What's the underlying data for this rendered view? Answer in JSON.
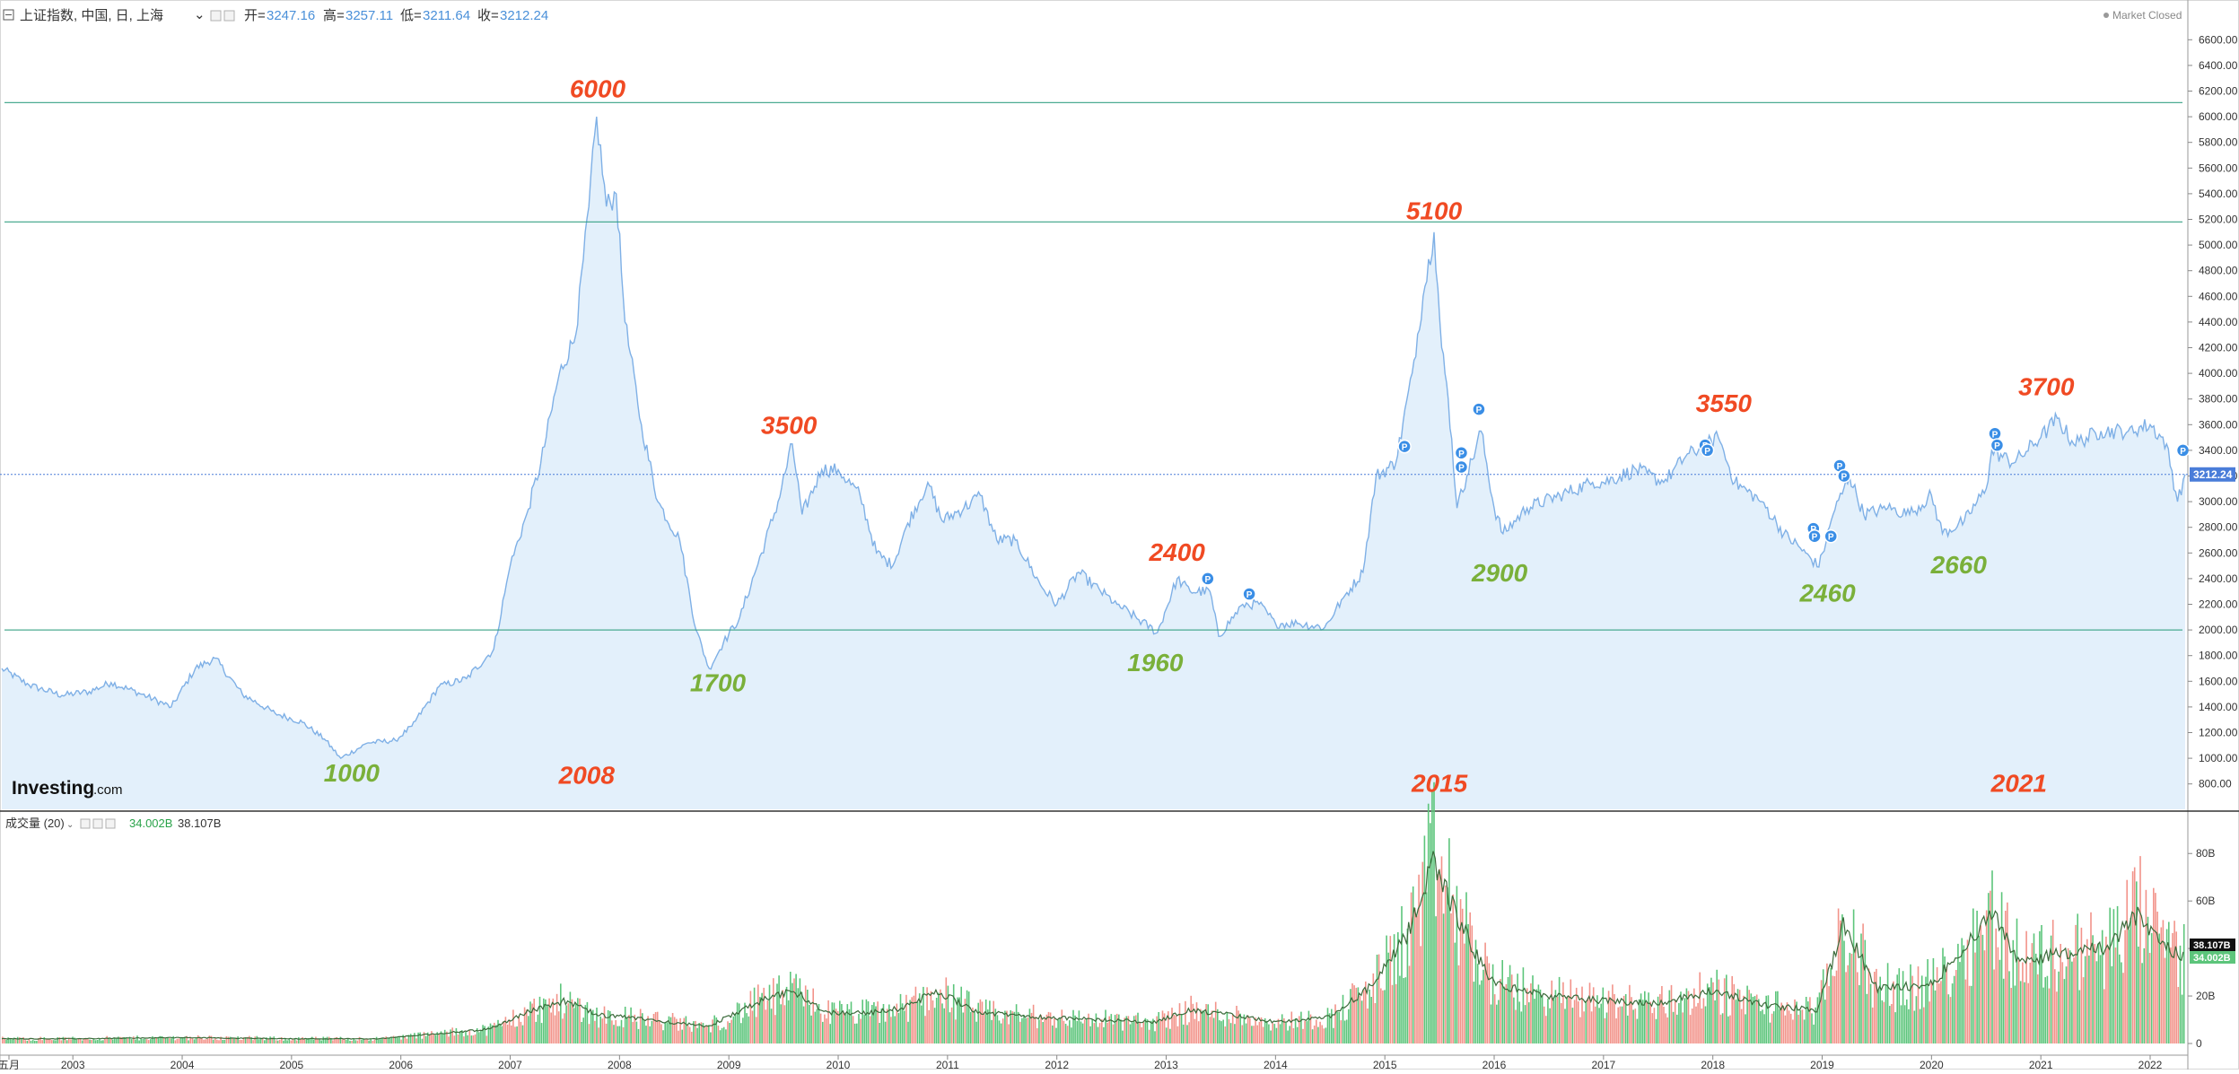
{
  "header": {
    "title": "上证指数, 中国, 日, 上海",
    "open_label": "开=",
    "open": "3247.16",
    "high_label": "高=",
    "high": "3257.11",
    "low_label": "低=",
    "low": "3211.64",
    "close_label": "收=",
    "close": "3212.24",
    "market_status": "Market Closed"
  },
  "volume_header": {
    "label": "成交量 (20)",
    "value1": "34.002B",
    "value2": "38.107B"
  },
  "logo": {
    "main": "Investing",
    "suffix": ".com"
  },
  "colors": {
    "price_line": "#7fb0e6",
    "area_fill": "#e3f0fb",
    "hline": "#2f9e7f",
    "red_annot": "#f04a23",
    "green_annot": "#7ab03a",
    "vol_up": "#5cc57b",
    "vol_down": "#f2938a",
    "vol_ma": "#3b6b3b",
    "price_tag": "#4a7dd9"
  },
  "chart_data": [
    {
      "type": "line",
      "title": "上证指数, 中国, 日, 上海",
      "x_labels": [
        "五月",
        "2003",
        "2004",
        "2005",
        "2006",
        "2007",
        "2008",
        "2009",
        "2010",
        "2011",
        "2012",
        "2013",
        "2014",
        "2015",
        "2016",
        "2017",
        "2018",
        "2019",
        "2020",
        "2021",
        "2022"
      ],
      "y_ticks": [
        "800.00",
        "1000.00",
        "1200.00",
        "1400.00",
        "1600.00",
        "1800.00",
        "2000.00",
        "2200.00",
        "2400.00",
        "2600.00",
        "2800.00",
        "3000.00",
        "3200.00",
        "3400.00",
        "3600.00",
        "3800.00",
        "4000.00",
        "4200.00",
        "4400.00",
        "4600.00",
        "4800.00",
        "5000.00",
        "5200.00",
        "5400.00",
        "5600.00",
        "5800.00",
        "6000.00",
        "6200.00",
        "6400.00",
        "6600.00"
      ],
      "ylim": [
        700,
        6700
      ],
      "series": [
        {
          "points": [
            [
              2002.35,
              1700
            ],
            [
              2002.6,
              1570
            ],
            [
              2002.9,
              1490
            ],
            [
              2003.15,
              1520
            ],
            [
              2003.35,
              1590
            ],
            [
              2003.6,
              1510
            ],
            [
              2003.9,
              1400
            ],
            [
              2004.12,
              1700
            ],
            [
              2004.3,
              1780
            ],
            [
              2004.55,
              1500
            ],
            [
              2004.85,
              1350
            ],
            [
              2005.1,
              1280
            ],
            [
              2005.3,
              1150
            ],
            [
              2005.45,
              1000
            ],
            [
              2005.7,
              1120
            ],
            [
              2005.95,
              1140
            ],
            [
              2006.1,
              1250
            ],
            [
              2006.35,
              1560
            ],
            [
              2006.6,
              1620
            ],
            [
              2006.85,
              1850
            ],
            [
              2007.0,
              2500
            ],
            [
              2007.15,
              2900
            ],
            [
              2007.28,
              3300
            ],
            [
              2007.45,
              4000
            ],
            [
              2007.6,
              4300
            ],
            [
              2007.72,
              5300
            ],
            [
              2007.79,
              6000
            ],
            [
              2007.88,
              5300
            ],
            [
              2007.97,
              5400
            ],
            [
              2008.05,
              4400
            ],
            [
              2008.2,
              3600
            ],
            [
              2008.35,
              3000
            ],
            [
              2008.55,
              2700
            ],
            [
              2008.7,
              2000
            ],
            [
              2008.82,
              1700
            ],
            [
              2008.95,
              1900
            ],
            [
              2009.1,
              2100
            ],
            [
              2009.3,
              2600
            ],
            [
              2009.45,
              3000
            ],
            [
              2009.58,
              3450
            ],
            [
              2009.67,
              2900
            ],
            [
              2009.85,
              3250
            ],
            [
              2010.0,
              3250
            ],
            [
              2010.2,
              3050
            ],
            [
              2010.35,
              2600
            ],
            [
              2010.5,
              2500
            ],
            [
              2010.62,
              2800
            ],
            [
              2010.82,
              3150
            ],
            [
              2010.95,
              2850
            ],
            [
              2011.15,
              2950
            ],
            [
              2011.3,
              3050
            ],
            [
              2011.45,
              2700
            ],
            [
              2011.62,
              2700
            ],
            [
              2011.85,
              2350
            ],
            [
              2012.0,
              2200
            ],
            [
              2012.2,
              2450
            ],
            [
              2012.4,
              2300
            ],
            [
              2012.55,
              2200
            ],
            [
              2012.75,
              2080
            ],
            [
              2012.92,
              1980
            ],
            [
              2013.1,
              2400
            ],
            [
              2013.22,
              2300
            ],
            [
              2013.4,
              2300
            ],
            [
              2013.48,
              1950
            ],
            [
              2013.7,
              2200
            ],
            [
              2013.85,
              2200
            ],
            [
              2014.0,
              2050
            ],
            [
              2014.2,
              2050
            ],
            [
              2014.45,
              2020
            ],
            [
              2014.62,
              2250
            ],
            [
              2014.8,
              2450
            ],
            [
              2014.92,
              3200
            ],
            [
              2015.1,
              3300
            ],
            [
              2015.25,
              4000
            ],
            [
              2015.35,
              4600
            ],
            [
              2015.45,
              5100
            ],
            [
              2015.52,
              4200
            ],
            [
              2015.58,
              3800
            ],
            [
              2015.66,
              2950
            ],
            [
              2015.75,
              3200
            ],
            [
              2015.88,
              3550
            ],
            [
              2016.0,
              2950
            ],
            [
              2016.08,
              2750
            ],
            [
              2016.3,
              2950
            ],
            [
              2016.6,
              3050
            ],
            [
              2016.9,
              3150
            ],
            [
              2017.0,
              3150
            ],
            [
              2017.3,
              3250
            ],
            [
              2017.55,
              3150
            ],
            [
              2017.75,
              3350
            ],
            [
              2017.95,
              3450
            ],
            [
              2018.05,
              3500
            ],
            [
              2018.2,
              3150
            ],
            [
              2018.45,
              3000
            ],
            [
              2018.65,
              2750
            ],
            [
              2018.85,
              2600
            ],
            [
              2018.97,
              2490
            ],
            [
              2019.1,
              2900
            ],
            [
              2019.25,
              3200
            ],
            [
              2019.38,
              2900
            ],
            [
              2019.6,
              2950
            ],
            [
              2019.8,
              2900
            ],
            [
              2020.0,
              3050
            ],
            [
              2020.1,
              2750
            ],
            [
              2020.3,
              2850
            ],
            [
              2020.5,
              3100
            ],
            [
              2020.55,
              3400
            ],
            [
              2020.75,
              3300
            ],
            [
              2021.0,
              3500
            ],
            [
              2021.15,
              3650
            ],
            [
              2021.3,
              3450
            ],
            [
              2021.55,
              3550
            ],
            [
              2021.8,
              3550
            ],
            [
              2022.0,
              3600
            ],
            [
              2022.15,
              3450
            ],
            [
              2022.25,
              3000
            ],
            [
              2022.32,
              3212
            ]
          ]
        }
      ],
      "hlines": [
        6110,
        5180,
        2000
      ],
      "last_value_tag": "3212.24",
      "annotations": [
        {
          "text": "6000",
          "x": 2007.8,
          "y": 6150,
          "color": "red"
        },
        {
          "text": "5100",
          "x": 2015.45,
          "y": 5200,
          "color": "red"
        },
        {
          "text": "3500",
          "x": 2009.55,
          "y": 3530,
          "color": "red"
        },
        {
          "text": "2400",
          "x": 2013.1,
          "y": 2540,
          "color": "red"
        },
        {
          "text": "3550",
          "x": 2018.1,
          "y": 3700,
          "color": "red"
        },
        {
          "text": "3700",
          "x": 2021.05,
          "y": 3830,
          "color": "red"
        },
        {
          "text": "1000",
          "x": 2005.55,
          "y": 820,
          "color": "green"
        },
        {
          "text": "1700",
          "x": 2008.9,
          "y": 1520,
          "color": "green"
        },
        {
          "text": "1960",
          "x": 2012.9,
          "y": 1680,
          "color": "green"
        },
        {
          "text": "2900",
          "x": 2016.05,
          "y": 2380,
          "color": "green"
        },
        {
          "text": "2460",
          "x": 2019.05,
          "y": 2220,
          "color": "green"
        },
        {
          "text": "2660",
          "x": 2020.25,
          "y": 2440,
          "color": "green"
        },
        {
          "text": "2008",
          "x": 2007.7,
          "y": 800,
          "color": "red"
        },
        {
          "text": "2015",
          "x": 2015.5,
          "y": 740,
          "color": "red"
        },
        {
          "text": "2021",
          "x": 2020.8,
          "y": 740,
          "color": "red"
        }
      ],
      "markers": [
        [
          2013.38,
          2400
        ],
        [
          2013.76,
          2280
        ],
        [
          2015.18,
          3430
        ],
        [
          2015.7,
          3380
        ],
        [
          2015.7,
          3270
        ],
        [
          2015.86,
          3720
        ],
        [
          2017.93,
          3440
        ],
        [
          2017.95,
          3400
        ],
        [
          2018.92,
          2790
        ],
        [
          2018.93,
          2730
        ],
        [
          2019.08,
          2730
        ],
        [
          2019.16,
          3280
        ],
        [
          2019.2,
          3200
        ],
        [
          2020.58,
          3530
        ],
        [
          2020.6,
          3440
        ],
        [
          2022.3,
          3400
        ]
      ]
    },
    {
      "type": "bar",
      "title": "成交量 (20)",
      "y_ticks": [
        "0",
        "20B",
        "40B",
        "60B",
        "80B"
      ],
      "ylim": [
        0,
        85
      ],
      "volume_profile": [
        [
          2002.35,
          2
        ],
        [
          2003.0,
          2
        ],
        [
          2004.0,
          2.5
        ],
        [
          2005.0,
          2
        ],
        [
          2005.8,
          2
        ],
        [
          2006.3,
          4
        ],
        [
          2006.8,
          6
        ],
        [
          2007.2,
          14
        ],
        [
          2007.5,
          18
        ],
        [
          2007.8,
          12
        ],
        [
          2008.3,
          10
        ],
        [
          2008.8,
          7
        ],
        [
          2009.3,
          18
        ],
        [
          2009.6,
          22
        ],
        [
          2009.9,
          13
        ],
        [
          2010.3,
          13
        ],
        [
          2010.6,
          15
        ],
        [
          2010.9,
          22
        ],
        [
          2011.3,
          13
        ],
        [
          2011.9,
          11
        ],
        [
          2012.4,
          10
        ],
        [
          2012.9,
          9
        ],
        [
          2013.2,
          14
        ],
        [
          2013.6,
          12
        ],
        [
          2014.0,
          9
        ],
        [
          2014.5,
          11
        ],
        [
          2014.9,
          25
        ],
        [
          2015.2,
          45
        ],
        [
          2015.45,
          78
        ],
        [
          2015.6,
          60
        ],
        [
          2015.8,
          40
        ],
        [
          2016.0,
          25
        ],
        [
          2016.5,
          20
        ],
        [
          2017.0,
          18
        ],
        [
          2017.5,
          17
        ],
        [
          2018.0,
          22
        ],
        [
          2018.5,
          16
        ],
        [
          2018.95,
          14
        ],
        [
          2019.2,
          50
        ],
        [
          2019.5,
          23
        ],
        [
          2020.0,
          25
        ],
        [
          2020.2,
          35
        ],
        [
          2020.55,
          55
        ],
        [
          2020.8,
          35
        ],
        [
          2021.2,
          38
        ],
        [
          2021.6,
          40
        ],
        [
          2021.9,
          55
        ],
        [
          2022.1,
          42
        ],
        [
          2022.32,
          36
        ]
      ],
      "last_tags": [
        "38.107B",
        "34.002B"
      ]
    }
  ]
}
